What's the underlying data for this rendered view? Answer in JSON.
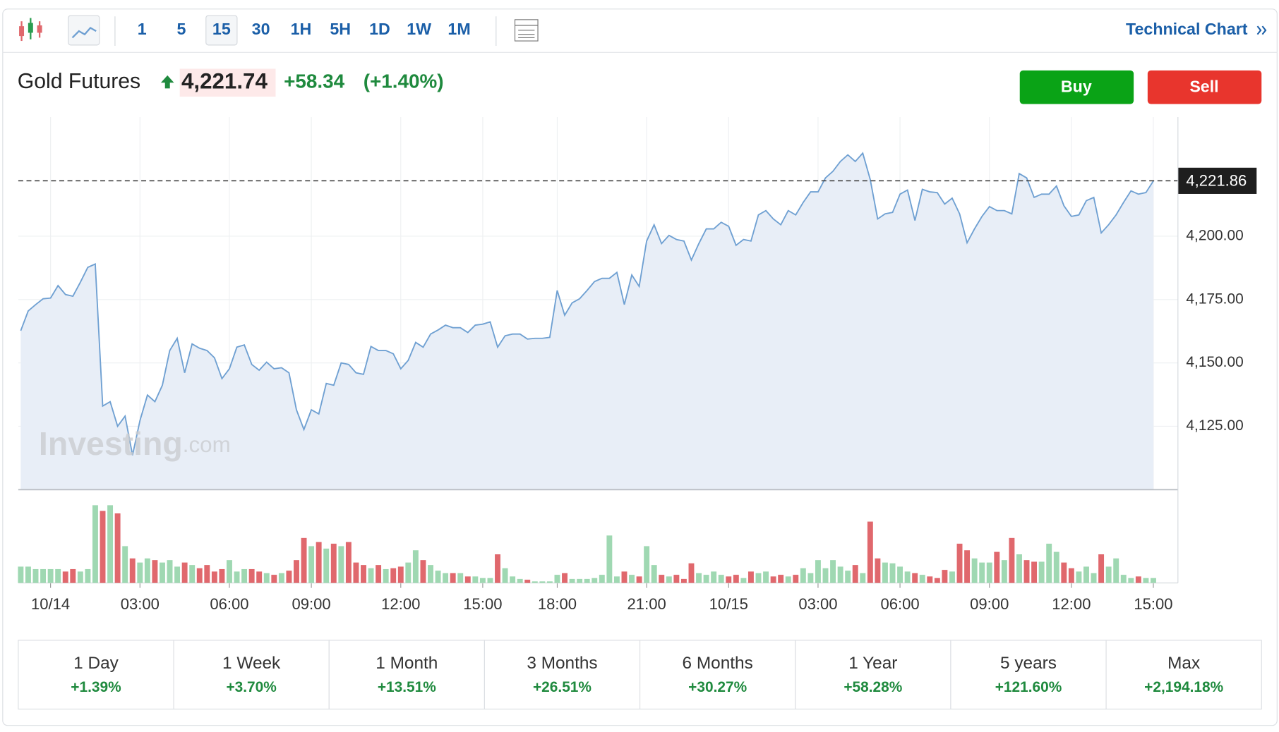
{
  "toolbar": {
    "intervals": [
      "1",
      "5",
      "15",
      "30",
      "1H",
      "5H",
      "1D",
      "1W",
      "1M"
    ],
    "active": "15",
    "link": "Technical Chart"
  },
  "header": {
    "name": "Gold Futures",
    "price": "4,221.74",
    "change": "+58.34",
    "change_pct": "(+1.40%)",
    "buy": "Buy",
    "sell": "Sell"
  },
  "watermark": {
    "brand": "Investing",
    "suffix": ".com"
  },
  "chart_data": {
    "type": "line",
    "color": "#6fa0d2",
    "fill": "#e8eef7",
    "categories": [
      null,
      null,
      null,
      null,
      "10/14",
      null,
      null,
      null,
      null,
      null,
      null,
      null,
      null,
      null,
      null,
      null,
      "03:00",
      null,
      null,
      null,
      null,
      null,
      null,
      null,
      null,
      null,
      null,
      null,
      "06:00",
      null,
      null,
      null,
      null,
      null,
      null,
      null,
      null,
      null,
      null,
      "09:00",
      null,
      null,
      null,
      null,
      null,
      null,
      null,
      null,
      null,
      null,
      null,
      "12:00",
      null,
      null,
      null,
      null,
      null,
      null,
      null,
      null,
      null,
      null,
      "15:00",
      null,
      null,
      null,
      null,
      null,
      null,
      null,
      null,
      null,
      "18:00",
      null,
      null,
      null,
      null,
      null,
      null,
      null,
      null,
      null,
      null,
      null,
      "21:00",
      null,
      null,
      null,
      null,
      null,
      null,
      null,
      null,
      null,
      null,
      "10/15",
      null,
      null,
      null,
      null,
      null,
      null,
      null,
      null,
      null,
      null,
      null,
      "03:00",
      null,
      null,
      null,
      null,
      null,
      null,
      null,
      null,
      null,
      null,
      "06:00",
      null,
      null,
      null,
      null,
      null,
      null,
      null,
      null,
      null,
      null,
      null,
      "09:00",
      null,
      null,
      null,
      null,
      null,
      null,
      null,
      null,
      null,
      null,
      "12:00",
      null,
      null,
      null,
      null,
      null,
      null,
      null,
      null,
      null,
      null,
      "15:00"
    ],
    "series": [
      {
        "name": "Price",
        "values": [
          4162.7,
          4170.5,
          4173,
          4175.3,
          4175.6,
          4180.5,
          4177,
          4176.3,
          4181.8,
          4187.7,
          4189,
          4133,
          4134.7,
          4125,
          4129,
          4113.6,
          4127.3,
          4137.3,
          4134.7,
          4141.2,
          4154.9,
          4159.7,
          4146.1,
          4157.5,
          4155.8,
          4154.9,
          4152,
          4143.8,
          4147.7,
          4156.2,
          4157.1,
          4149.4,
          4147.1,
          4150.3,
          4147.7,
          4148.1,
          4146.1,
          4131.5,
          4123.7,
          4131.5,
          4129.9,
          4141.9,
          4141.2,
          4150,
          4149.4,
          4146.1,
          4145.5,
          4156.5,
          4154.9,
          4154.9,
          4153.6,
          4147.7,
          4151,
          4158.1,
          4156.2,
          4161.4,
          4163,
          4164.9,
          4163.9,
          4163.9,
          4162,
          4164.9,
          4165.3,
          4166.2,
          4156.2,
          4160.7,
          4161.4,
          4161.4,
          4159.4,
          4159.7,
          4159.7,
          4160.1,
          4178.6,
          4168.8,
          4173.7,
          4175.3,
          4178.6,
          4182.1,
          4183.4,
          4183.4,
          4185.7,
          4173,
          4184.7,
          4180.2,
          4198.1,
          4204.5,
          4197.1,
          4200.3,
          4198.7,
          4198.1,
          4190.6,
          4197.1,
          4202.9,
          4202.9,
          4205.5,
          4203.9,
          4196.4,
          4198.7,
          4198.1,
          4208.4,
          4210.1,
          4206.8,
          4204.5,
          4210.1,
          4208.4,
          4213.3,
          4217.5,
          4217.5,
          4223,
          4225.6,
          4229.5,
          4232.1,
          4229.5,
          4232.8,
          4222.4,
          4206.8,
          4208.8,
          4209.4,
          4216.6,
          4218.2,
          4206.2,
          4218.5,
          4217.5,
          4217.2,
          4212.7,
          4215,
          4208.8,
          4197.4,
          4202.9,
          4207.8,
          4211.7,
          4210.1,
          4210.1,
          4208.8,
          4224.7,
          4223,
          4215.3,
          4216.6,
          4216.6,
          4219.8,
          4212,
          4207.8,
          4208.4,
          4214,
          4215.3,
          4201.3,
          4204.5,
          4208.4,
          4213.3,
          4217.9,
          4216.6,
          4217.2,
          4221.8
        ]
      },
      {
        "name": "Volume",
        "up_color": "#9fd8b2",
        "down_color": "#e0686d",
        "values": [
          20,
          20,
          17,
          17,
          17,
          17,
          14,
          17,
          14,
          17,
          95,
          88,
          95,
          85,
          45,
          30,
          25,
          30,
          28,
          25,
          28,
          20,
          25,
          22,
          18,
          22,
          14,
          17,
          28,
          14,
          17,
          17,
          14,
          12,
          10,
          12,
          15,
          28,
          55,
          45,
          50,
          42,
          48,
          45,
          50,
          25,
          22,
          18,
          22,
          17,
          18,
          20,
          25,
          40,
          28,
          22,
          15,
          12,
          12,
          12,
          8,
          8,
          6,
          6,
          35,
          18,
          8,
          5,
          4,
          2,
          2,
          2,
          10,
          12,
          5,
          5,
          5,
          6,
          10,
          58,
          8,
          14,
          10,
          8,
          45,
          22,
          10,
          8,
          10,
          5,
          24,
          12,
          10,
          14,
          10,
          8,
          10,
          6,
          14,
          12,
          14,
          8,
          10,
          8,
          10,
          18,
          12,
          28,
          18,
          28,
          20,
          15,
          22,
          12,
          75,
          30,
          25,
          24,
          20,
          14,
          12,
          10,
          8,
          6,
          16,
          14,
          48,
          40,
          30,
          25,
          25,
          38,
          28,
          55,
          35,
          28,
          26,
          26,
          48,
          38,
          25,
          18,
          14,
          20,
          12,
          35,
          20,
          30,
          10,
          6,
          8,
          6,
          6
        ]
      }
    ],
    "ylim": [
      4100,
      4247
    ],
    "yticks": [
      {
        "value": 4125,
        "label": "4,125.00"
      },
      {
        "value": 4150,
        "label": "4,150.00"
      },
      {
        "value": 4175,
        "label": "4,175.00"
      },
      {
        "value": 4200,
        "label": "4,200.00"
      }
    ],
    "volume_ylim": [
      0,
      100
    ],
    "last": {
      "value": 4221.86,
      "label": "4,221.86"
    },
    "grid": true
  },
  "periods": [
    {
      "label": "1 Day",
      "change": "+1.39%"
    },
    {
      "label": "1 Week",
      "change": "+3.70%"
    },
    {
      "label": "1 Month",
      "change": "+13.51%"
    },
    {
      "label": "3 Months",
      "change": "+26.51%"
    },
    {
      "label": "6 Months",
      "change": "+30.27%"
    },
    {
      "label": "1 Year",
      "change": "+58.28%"
    },
    {
      "label": "5 years",
      "change": "+121.60%"
    },
    {
      "label": "Max",
      "change": "+2,194.18%"
    }
  ]
}
